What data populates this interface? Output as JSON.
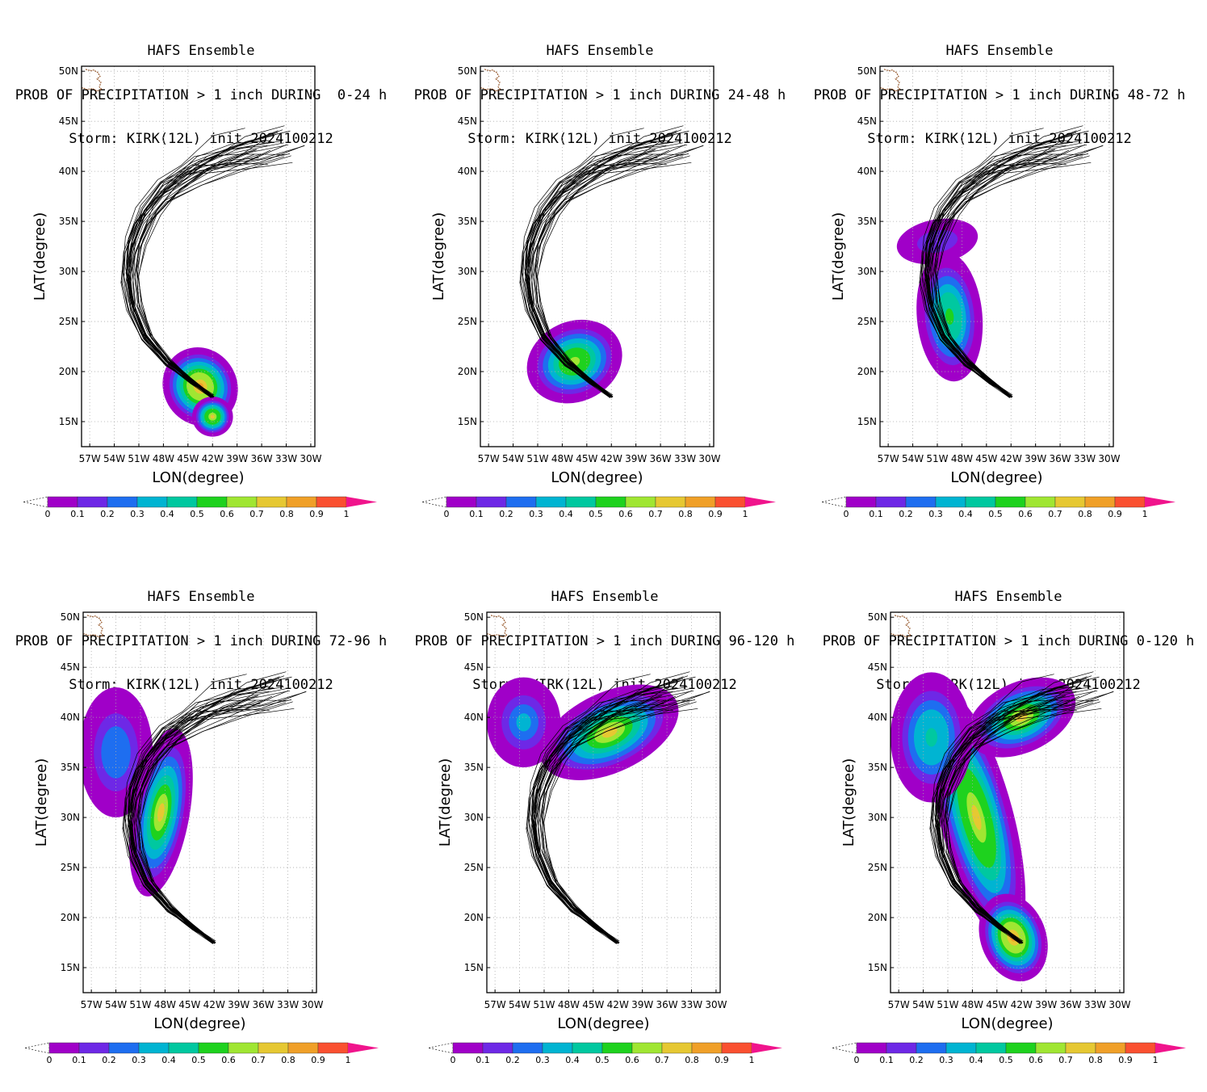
{
  "figure": {
    "common_title": "HAFS Ensemble",
    "storm_line": "Storm: KIRK(12L) init 2024100212",
    "x_axis_label": "LON(degree)",
    "y_axis_label": "LAT(degree)",
    "lat_ticks": [
      "50N",
      "45N",
      "40N",
      "35N",
      "30N",
      "25N",
      "20N",
      "15N"
    ],
    "lon_ticks": [
      "57W",
      "54W",
      "51W",
      "48W",
      "45W",
      "42W",
      "39W",
      "36W",
      "33W",
      "30W"
    ],
    "colorbar_labels": [
      "0",
      "0.1",
      "0.2",
      "0.3",
      "0.4",
      "0.5",
      "0.6",
      "0.7",
      "0.8",
      "0.9",
      "1"
    ],
    "colorbar_colors": [
      "#a000c8",
      "#6e28e6",
      "#1e6ef0",
      "#00b4d2",
      "#00c8a0",
      "#1ed21e",
      "#a0e632",
      "#e6c832",
      "#f0a028",
      "#fa5030"
    ],
    "colorbar_arrow_color": "#f0148c"
  },
  "panels": [
    {
      "title_line2": "PROB OF PRECIPITATION > 1 inch DURING  0-24 h",
      "period": "0-24 h"
    },
    {
      "title_line2": "PROB OF PRECIPITATION > 1 inch DURING 24-48 h",
      "period": "24-48 h"
    },
    {
      "title_line2": "PROB OF PRECIPITATION > 1 inch DURING 48-72 h",
      "period": "48-72 h"
    },
    {
      "title_line2": "PROB OF PRECIPITATION > 1 inch DURING 72-96 h",
      "period": "72-96 h"
    },
    {
      "title_line2": "PROB OF PRECIPITATION > 1 inch DURING 96-120 h",
      "period": "96-120 h"
    },
    {
      "title_line2": "PROB OF PRECIPITATION > 1 inch DURING 0-120 h",
      "period": "0-120 h"
    }
  ]
}
